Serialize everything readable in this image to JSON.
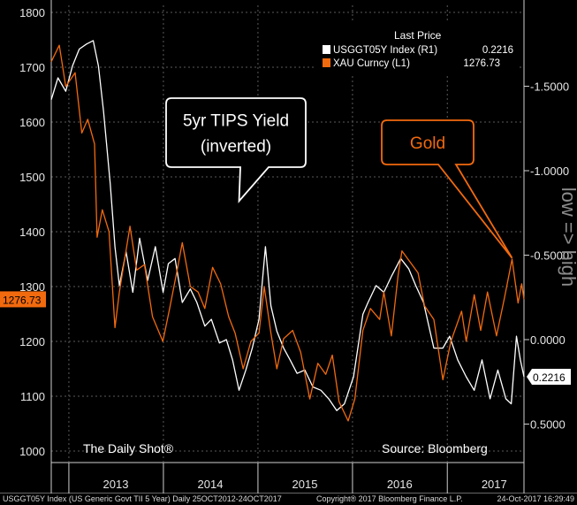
{
  "chart_data": {
    "type": "line",
    "x_range": [
      "2012-10-25",
      "2017-10-24"
    ],
    "x_ticks": [
      {
        "label": "2013",
        "date": "2013-07-01"
      },
      {
        "label": "2014",
        "date": "2014-07-01"
      },
      {
        "label": "2015",
        "date": "2015-07-01"
      },
      {
        "label": "2016",
        "date": "2016-07-01"
      },
      {
        "label": "2017",
        "date": "2017-07-01"
      }
    ],
    "year_boundaries": [
      "2013-01-01",
      "2014-01-01",
      "2015-01-01",
      "2016-01-01",
      "2017-01-01"
    ],
    "left_axis": {
      "ylim": [
        1000,
        1800
      ],
      "ticks": [
        "1000",
        "1100",
        "1200",
        "1300",
        "1400",
        "1500",
        "1600",
        "1700",
        "1800"
      ]
    },
    "right_axis": {
      "ylim": [
        0.7,
        -2.0
      ],
      "inverted": true,
      "ticks": [
        {
          "value": 0.5,
          "label": "0.5000"
        },
        {
          "value": 0.0,
          "label": "0.0000"
        },
        {
          "value": -0.5,
          "label": "-0.5000"
        },
        {
          "value": -1.0,
          "label": "-1.0000"
        },
        {
          "value": -1.5,
          "label": "-1.5000"
        }
      ],
      "side_label": "low => high"
    },
    "grid": true,
    "series": [
      {
        "key": "tips",
        "axis": "right",
        "color": "#ffffff",
        "last_value_label": "0.2216",
        "points": [
          [
            "2012-10-25",
            -1.42
          ],
          [
            "2012-11-20",
            -1.55
          ],
          [
            "2012-12-20",
            -1.47
          ],
          [
            "2013-01-15",
            -1.62
          ],
          [
            "2013-02-10",
            -1.72
          ],
          [
            "2013-03-10",
            -1.75
          ],
          [
            "2013-04-05",
            -1.77
          ],
          [
            "2013-04-25",
            -1.62
          ],
          [
            "2013-05-15",
            -1.35
          ],
          [
            "2013-06-10",
            -0.92
          ],
          [
            "2013-06-28",
            -0.55
          ],
          [
            "2013-07-15",
            -0.32
          ],
          [
            "2013-08-10",
            -0.52
          ],
          [
            "2013-09-05",
            -0.28
          ],
          [
            "2013-10-01",
            -0.6
          ],
          [
            "2013-11-01",
            -0.35
          ],
          [
            "2013-12-01",
            -0.55
          ],
          [
            "2013-12-31",
            -0.28
          ],
          [
            "2014-01-20",
            -0.45
          ],
          [
            "2014-02-15",
            -0.48
          ],
          [
            "2014-03-15",
            -0.22
          ],
          [
            "2014-04-15",
            -0.3
          ],
          [
            "2014-05-10",
            -0.22
          ],
          [
            "2014-06-10",
            -0.08
          ],
          [
            "2014-07-05",
            -0.12
          ],
          [
            "2014-08-05",
            0.02
          ],
          [
            "2014-09-01",
            0.0
          ],
          [
            "2014-09-25",
            0.12
          ],
          [
            "2014-10-20",
            0.3
          ],
          [
            "2014-11-15",
            0.18
          ],
          [
            "2014-12-10",
            0.05
          ],
          [
            "2015-01-05",
            -0.12
          ],
          [
            "2015-01-30",
            -0.55
          ],
          [
            "2015-02-20",
            -0.2
          ],
          [
            "2015-03-15",
            -0.05
          ],
          [
            "2015-04-10",
            0.05
          ],
          [
            "2015-05-05",
            0.12
          ],
          [
            "2015-06-01",
            0.2
          ],
          [
            "2015-07-01",
            0.18
          ],
          [
            "2015-08-01",
            0.28
          ],
          [
            "2015-09-01",
            0.3
          ],
          [
            "2015-10-01",
            0.35
          ],
          [
            "2015-11-01",
            0.42
          ],
          [
            "2015-12-01",
            0.38
          ],
          [
            "2016-01-05",
            0.22
          ],
          [
            "2016-02-10",
            -0.15
          ],
          [
            "2016-03-01",
            -0.22
          ],
          [
            "2016-04-01",
            -0.32
          ],
          [
            "2016-05-01",
            -0.28
          ],
          [
            "2016-06-01",
            -0.38
          ],
          [
            "2016-07-05",
            -0.48
          ],
          [
            "2016-08-05",
            -0.42
          ],
          [
            "2016-09-01",
            -0.32
          ],
          [
            "2016-10-01",
            -0.22
          ],
          [
            "2016-11-10",
            0.05
          ],
          [
            "2016-12-15",
            0.05
          ],
          [
            "2017-01-10",
            -0.02
          ],
          [
            "2017-02-10",
            0.12
          ],
          [
            "2017-03-15",
            0.22
          ],
          [
            "2017-04-15",
            0.3
          ],
          [
            "2017-05-15",
            0.12
          ],
          [
            "2017-06-15",
            0.35
          ],
          [
            "2017-07-15",
            0.18
          ],
          [
            "2017-08-15",
            0.35
          ],
          [
            "2017-09-05",
            0.38
          ],
          [
            "2017-09-25",
            -0.02
          ],
          [
            "2017-10-10",
            0.12
          ],
          [
            "2017-10-24",
            0.22
          ]
        ]
      },
      {
        "key": "gold",
        "axis": "left",
        "color": "#f26a0e",
        "last_value_label": "1276.73",
        "points": [
          [
            "2012-10-25",
            1710
          ],
          [
            "2012-11-25",
            1740
          ],
          [
            "2012-12-20",
            1665
          ],
          [
            "2013-01-25",
            1690
          ],
          [
            "2013-02-20",
            1580
          ],
          [
            "2013-03-15",
            1605
          ],
          [
            "2013-04-10",
            1560
          ],
          [
            "2013-04-20",
            1390
          ],
          [
            "2013-05-10",
            1440
          ],
          [
            "2013-06-05",
            1400
          ],
          [
            "2013-06-28",
            1225
          ],
          [
            "2013-07-15",
            1290
          ],
          [
            "2013-08-25",
            1410
          ],
          [
            "2013-09-20",
            1330
          ],
          [
            "2013-10-20",
            1340
          ],
          [
            "2013-11-20",
            1245
          ],
          [
            "2013-12-30",
            1200
          ],
          [
            "2014-01-25",
            1260
          ],
          [
            "2014-02-25",
            1335
          ],
          [
            "2014-03-15",
            1380
          ],
          [
            "2014-04-15",
            1300
          ],
          [
            "2014-05-15",
            1290
          ],
          [
            "2014-06-10",
            1260
          ],
          [
            "2014-07-10",
            1335
          ],
          [
            "2014-08-10",
            1305
          ],
          [
            "2014-09-10",
            1245
          ],
          [
            "2014-10-05",
            1215
          ],
          [
            "2014-11-05",
            1150
          ],
          [
            "2014-12-05",
            1200
          ],
          [
            "2015-01-05",
            1215
          ],
          [
            "2015-01-25",
            1300
          ],
          [
            "2015-02-20",
            1215
          ],
          [
            "2015-03-15",
            1150
          ],
          [
            "2015-04-10",
            1205
          ],
          [
            "2015-05-15",
            1220
          ],
          [
            "2015-06-15",
            1180
          ],
          [
            "2015-07-20",
            1095
          ],
          [
            "2015-08-20",
            1160
          ],
          [
            "2015-09-20",
            1140
          ],
          [
            "2015-10-15",
            1175
          ],
          [
            "2015-11-10",
            1090
          ],
          [
            "2015-12-15",
            1055
          ],
          [
            "2016-01-10",
            1095
          ],
          [
            "2016-02-10",
            1220
          ],
          [
            "2016-03-10",
            1260
          ],
          [
            "2016-04-15",
            1240
          ],
          [
            "2016-05-01",
            1290
          ],
          [
            "2016-05-30",
            1210
          ],
          [
            "2016-06-25",
            1320
          ],
          [
            "2016-07-10",
            1365
          ],
          [
            "2016-08-10",
            1345
          ],
          [
            "2016-09-10",
            1325
          ],
          [
            "2016-10-05",
            1265
          ],
          [
            "2016-11-10",
            1240
          ],
          [
            "2016-12-15",
            1130
          ],
          [
            "2017-01-15",
            1200
          ],
          [
            "2017-02-25",
            1255
          ],
          [
            "2017-03-15",
            1200
          ],
          [
            "2017-04-15",
            1285
          ],
          [
            "2017-05-10",
            1220
          ],
          [
            "2017-06-05",
            1290
          ],
          [
            "2017-07-10",
            1210
          ],
          [
            "2017-08-10",
            1280
          ],
          [
            "2017-09-08",
            1350
          ],
          [
            "2017-10-01",
            1270
          ],
          [
            "2017-10-15",
            1305
          ],
          [
            "2017-10-24",
            1276.73
          ]
        ]
      }
    ],
    "callouts": [
      {
        "key": "tips",
        "text_lines": [
          "5yr TIPS Yield",
          "(inverted)"
        ],
        "color": "#ffffff",
        "target": {
          "date": "2014-10-20",
          "axis": "right",
          "value": -0.82
        }
      },
      {
        "key": "gold",
        "text_lines": [
          "Gold"
        ],
        "color": "#f26a0e",
        "target": {
          "date": "2017-09-08",
          "axis": "left",
          "value": 1352
        }
      }
    ],
    "legend": {
      "title": "Last Price",
      "entries": [
        {
          "name": "USGGT05Y Index  (R1)",
          "value": "0.2216",
          "color": "#ffffff"
        },
        {
          "name": "XAU Curncy  (L1)",
          "value": "1276.73",
          "color": "#f26a0e"
        }
      ]
    },
    "credits": {
      "left": "The Daily Shot®",
      "right": "Source: Bloomberg"
    },
    "footer": {
      "left": "USGGT05Y Index (US Generic Govt TII 5 Year)  Daily 25OCT2012-24OCT2017",
      "center": "Copyright® 2017 Bloomberg Finance L.P.",
      "right": "24-Oct-2017  16:29:49"
    }
  }
}
